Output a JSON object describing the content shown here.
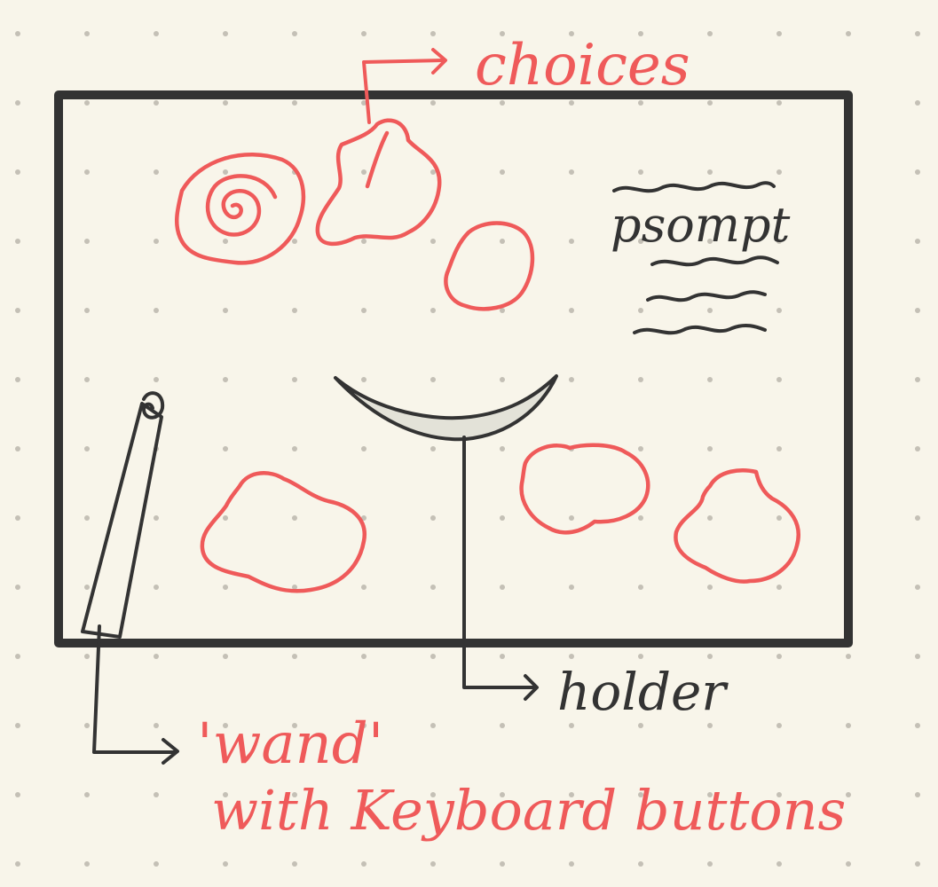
{
  "labels": {
    "choices": "choices",
    "prompt": "psompt",
    "holder": "holder",
    "wand": "'wand'",
    "wand_subtitle": "with Keyboard buttons"
  },
  "colors": {
    "background": "#f8f5ea",
    "dot": "#c4c0b6",
    "ink_dark": "#333333",
    "ink_red": "#ef5a5a",
    "holder_fill": "#e3e2d8"
  }
}
